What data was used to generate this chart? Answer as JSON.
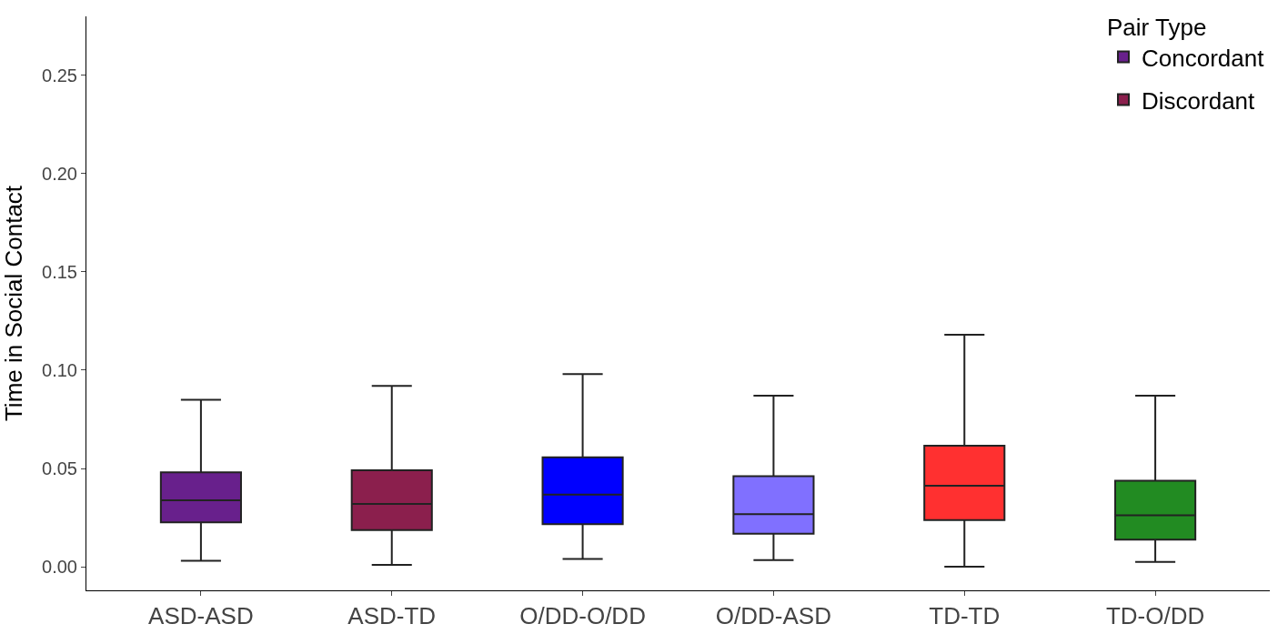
{
  "chart_data": {
    "type": "box",
    "ylabel": "Time in Social Contact",
    "legend_title": "Pair Type",
    "categories": [
      "ASD-ASD",
      "ASD-TD",
      "O/DD-O/DD",
      "O/DD-ASD",
      "TD-TD",
      "TD-O/DD"
    ],
    "ylim": [
      -0.012,
      0.28
    ],
    "yticks": [
      {
        "value": 0,
        "label": "0.00"
      },
      {
        "value": 0.05,
        "label": "0.05"
      },
      {
        "value": 0.1,
        "label": "0.10"
      },
      {
        "value": 0.15,
        "label": "0.15"
      },
      {
        "value": 0.2,
        "label": "0.20"
      },
      {
        "value": 0.25,
        "label": "0.25"
      }
    ],
    "legend": "top right",
    "series": [
      {
        "name": "Concordant",
        "colors": [
          "#68208c",
          null,
          "#0000ff",
          null,
          "#ff3030",
          null
        ],
        "boxes": [
          {
            "low": 0.003,
            "q1": 0.0226,
            "median": 0.0338,
            "q3": 0.0481,
            "high": 0.085
          },
          null,
          {
            "low": 0.004,
            "q1": 0.0217,
            "median": 0.0367,
            "q3": 0.0557,
            "high": 0.098
          },
          null,
          {
            "low": 0.0,
            "q1": 0.0238,
            "median": 0.0412,
            "q3": 0.0616,
            "high": 0.118
          },
          null
        ]
      },
      {
        "name": "Discordant",
        "colors": [
          null,
          "#8b1f4d",
          null,
          "#8070ff",
          null,
          "#228b22"
        ],
        "boxes": [
          null,
          {
            "low": 0.001,
            "q1": 0.0187,
            "median": 0.032,
            "q3": 0.0491,
            "high": 0.092
          },
          null,
          {
            "low": 0.0034,
            "q1": 0.0168,
            "median": 0.0268,
            "q3": 0.0461,
            "high": 0.087
          },
          null,
          {
            "low": 0.0025,
            "q1": 0.0138,
            "median": 0.0262,
            "q3": 0.0438,
            "high": 0.087
          }
        ]
      }
    ]
  }
}
